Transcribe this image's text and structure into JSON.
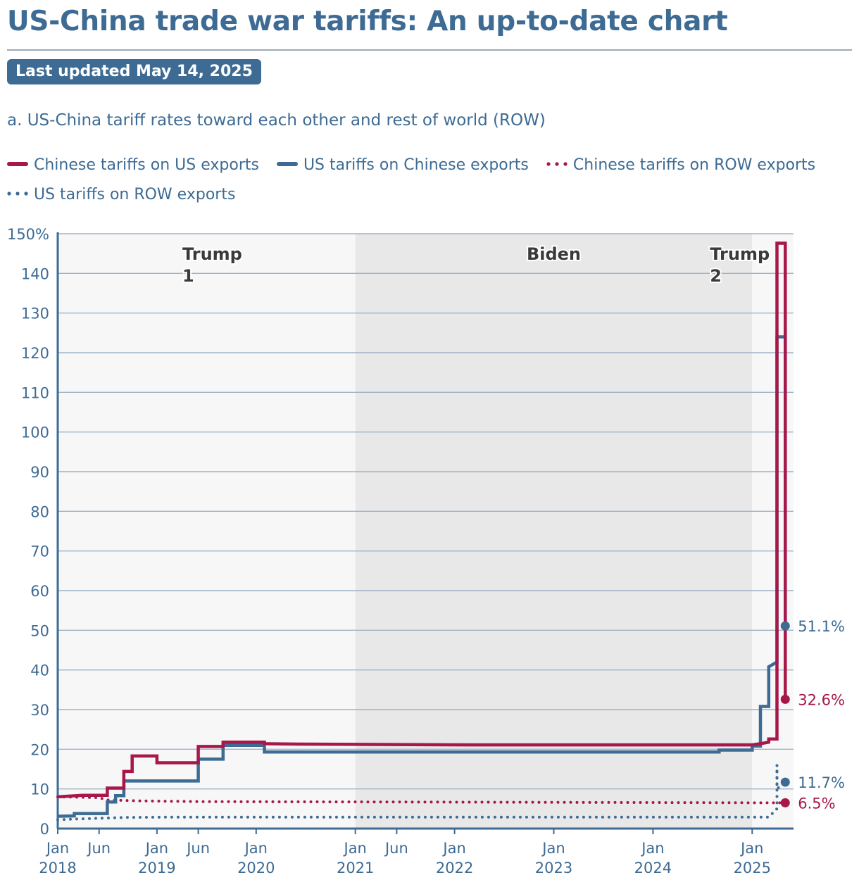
{
  "header": {
    "title": "US-China trade war tariffs: An up-to-date chart",
    "badge": "Last updated May 14, 2025",
    "subtitle": "a. US-China tariff rates toward each other and rest of world (ROW)"
  },
  "colors": {
    "chinese": "#a8174a",
    "us": "#3d6b94",
    "eraLight": "#f7f7f8",
    "eraDark": "#e8e8e9",
    "grid": "#9fb3c4",
    "axis": "#3d6b94",
    "eraLabel": "#3a3a3a"
  },
  "chart_data": {
    "type": "line",
    "ylim": [
      0,
      150
    ],
    "xlim": [
      "2018-01",
      "2025-06"
    ],
    "grid": true,
    "legend_position": "top",
    "y_ticks": [
      {
        "value": 0,
        "label": "0"
      },
      {
        "value": 10,
        "label": "10"
      },
      {
        "value": 20,
        "label": "20"
      },
      {
        "value": 30,
        "label": "30"
      },
      {
        "value": 40,
        "label": "40"
      },
      {
        "value": 50,
        "label": "50"
      },
      {
        "value": 60,
        "label": "60"
      },
      {
        "value": 70,
        "label": "70"
      },
      {
        "value": 80,
        "label": "80"
      },
      {
        "value": 90,
        "label": "90"
      },
      {
        "value": 100,
        "label": "100"
      },
      {
        "value": 110,
        "label": "110"
      },
      {
        "value": 120,
        "label": "120"
      },
      {
        "value": 130,
        "label": "130"
      },
      {
        "value": 140,
        "label": "140"
      },
      {
        "value": 150,
        "label": "150%"
      }
    ],
    "x_ticks": [
      {
        "date": "2018-01",
        "label": "Jan",
        "sub": "2018"
      },
      {
        "date": "2018-06",
        "label": "Jun",
        "sub": ""
      },
      {
        "date": "2019-01",
        "label": "Jan",
        "sub": "2019"
      },
      {
        "date": "2019-06",
        "label": "Jun",
        "sub": ""
      },
      {
        "date": "2020-01",
        "label": "Jan",
        "sub": "2020"
      },
      {
        "date": "2021-01",
        "label": "Jan",
        "sub": "2021"
      },
      {
        "date": "2021-06",
        "label": "Jun",
        "sub": ""
      },
      {
        "date": "2022-01",
        "label": "Jan",
        "sub": "2022"
      },
      {
        "date": "2023-01",
        "label": "Jan",
        "sub": "2023"
      },
      {
        "date": "2024-01",
        "label": "Jan",
        "sub": "2024"
      },
      {
        "date": "2025-01",
        "label": "Jan",
        "sub": "2025"
      }
    ],
    "eras": [
      {
        "name": "Trump",
        "line2": "1",
        "from": "2018-01",
        "to": "2021-01",
        "shade": "light"
      },
      {
        "name": "Biden",
        "line2": "",
        "from": "2021-01",
        "to": "2025-01",
        "shade": "dark"
      },
      {
        "name": "Trump",
        "line2": "2",
        "from": "2025-01",
        "to": "2025-06",
        "shade": "light"
      }
    ],
    "series": [
      {
        "name": "Chinese tariffs on US exports",
        "style": "solid",
        "color_key": "chinese",
        "points": [
          [
            "2018-01",
            8.0
          ],
          [
            "2018-04",
            8.4
          ],
          [
            "2018-07",
            8.4
          ],
          [
            "2018-07",
            10.2
          ],
          [
            "2018-09",
            10.2
          ],
          [
            "2018-09",
            14.4
          ],
          [
            "2018-10",
            14.4
          ],
          [
            "2018-10",
            18.3
          ],
          [
            "2019-01",
            18.3
          ],
          [
            "2019-01",
            16.6
          ],
          [
            "2019-06",
            16.6
          ],
          [
            "2019-06",
            20.7
          ],
          [
            "2019-09",
            20.7
          ],
          [
            "2019-09",
            21.8
          ],
          [
            "2020-02",
            21.8
          ],
          [
            "2020-02",
            21.4
          ],
          [
            "2020-06",
            21.3
          ],
          [
            "2022-03",
            21.1
          ],
          [
            "2025-01",
            21.1
          ],
          [
            "2025-02",
            21.4
          ],
          [
            "2025-03",
            21.8
          ],
          [
            "2025-03",
            22.6
          ],
          [
            "2025-04",
            22.6
          ],
          [
            "2025-04",
            104
          ],
          [
            "2025-04",
            147.6
          ],
          [
            "2025-05",
            147.6
          ],
          [
            "2025-05",
            32.6
          ]
        ]
      },
      {
        "name": "US tariffs on Chinese exports",
        "style": "solid",
        "color_key": "us",
        "points": [
          [
            "2018-01",
            3.1
          ],
          [
            "2018-03",
            3.2
          ],
          [
            "2018-03",
            3.8
          ],
          [
            "2018-07",
            3.8
          ],
          [
            "2018-07",
            6.7
          ],
          [
            "2018-08",
            6.7
          ],
          [
            "2018-08",
            8.3
          ],
          [
            "2018-09",
            8.3
          ],
          [
            "2018-09",
            12.0
          ],
          [
            "2019-06",
            12.0
          ],
          [
            "2019-06",
            17.5
          ],
          [
            "2019-09",
            17.5
          ],
          [
            "2019-09",
            21.0
          ],
          [
            "2020-02",
            21.0
          ],
          [
            "2020-02",
            19.3
          ],
          [
            "2024-09",
            19.3
          ],
          [
            "2024-09",
            19.8
          ],
          [
            "2025-01",
            19.8
          ],
          [
            "2025-01",
            20.8
          ],
          [
            "2025-02",
            20.8
          ],
          [
            "2025-02",
            30.8
          ],
          [
            "2025-03",
            30.8
          ],
          [
            "2025-03",
            40.8
          ],
          [
            "2025-04",
            42.0
          ],
          [
            "2025-04",
            50
          ],
          [
            "2025-04",
            124
          ],
          [
            "2025-05",
            124
          ],
          [
            "2025-05",
            126.5
          ],
          [
            "2025-05",
            51.1
          ]
        ]
      },
      {
        "name": "Chinese tariffs on ROW exports",
        "style": "dotted",
        "color_key": "chinese",
        "points": [
          [
            "2018-01",
            8.0
          ],
          [
            "2018-06",
            7.8
          ],
          [
            "2018-07",
            7.2
          ],
          [
            "2018-11",
            7.0
          ],
          [
            "2019-06",
            6.8
          ],
          [
            "2025-04",
            6.5
          ],
          [
            "2025-05",
            6.5
          ]
        ]
      },
      {
        "name": "US tariffs on ROW exports",
        "style": "dotted",
        "color_key": "us",
        "points": [
          [
            "2018-01",
            2.2
          ],
          [
            "2018-03",
            2.4
          ],
          [
            "2018-06",
            2.6
          ],
          [
            "2018-09",
            2.8
          ],
          [
            "2019-03",
            2.9
          ],
          [
            "2025-03",
            2.9
          ],
          [
            "2025-04",
            5
          ],
          [
            "2025-04",
            16
          ],
          [
            "2025-04",
            10
          ],
          [
            "2025-05",
            11.7
          ]
        ]
      }
    ],
    "end_labels": [
      {
        "series": 1,
        "value": 51.1,
        "label": "51.1%",
        "color_key": "us"
      },
      {
        "series": 0,
        "value": 32.6,
        "label": "32.6%",
        "color_key": "chinese"
      },
      {
        "series": 3,
        "value": 11.7,
        "label": "11.7%",
        "color_key": "us"
      },
      {
        "series": 2,
        "value": 6.5,
        "label": "6.5%",
        "color_key": "chinese"
      }
    ]
  }
}
